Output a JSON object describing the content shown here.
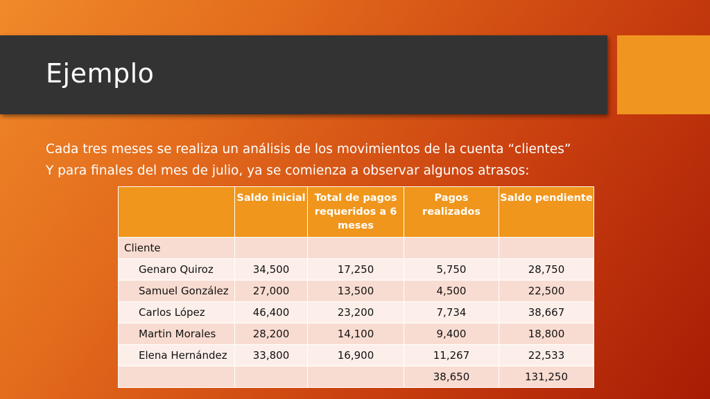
{
  "slide": {
    "title": "Ejemplo",
    "lines": [
      "Cada tres meses se realiza un análisis de los movimientos de la cuenta “clientes”",
      "Y para finales del mes de julio, ya se comienza a observar algunos atrasos:"
    ]
  },
  "table": {
    "headers": [
      "",
      "Saldo inicial",
      "Total de pagos requeridos a 6 meses",
      "Pagos realizados",
      "Saldo pendiente"
    ],
    "group_label": "Cliente",
    "rows": [
      [
        "Genaro Quiroz",
        "34,500",
        "17,250",
        "5,750",
        "28,750"
      ],
      [
        "Samuel González",
        "27,000",
        "13,500",
        "4,500",
        "22,500"
      ],
      [
        "Carlos López",
        "46,400",
        "23,200",
        "7,734",
        "38,667"
      ],
      [
        "Martin Morales",
        "28,200",
        "14,100",
        "9,400",
        "18,800"
      ],
      [
        "Elena Hernández",
        "33,800",
        "16,900",
        "11,267",
        "22,533"
      ]
    ],
    "totals": [
      "",
      "",
      "",
      "38,650",
      "131,250"
    ]
  }
}
